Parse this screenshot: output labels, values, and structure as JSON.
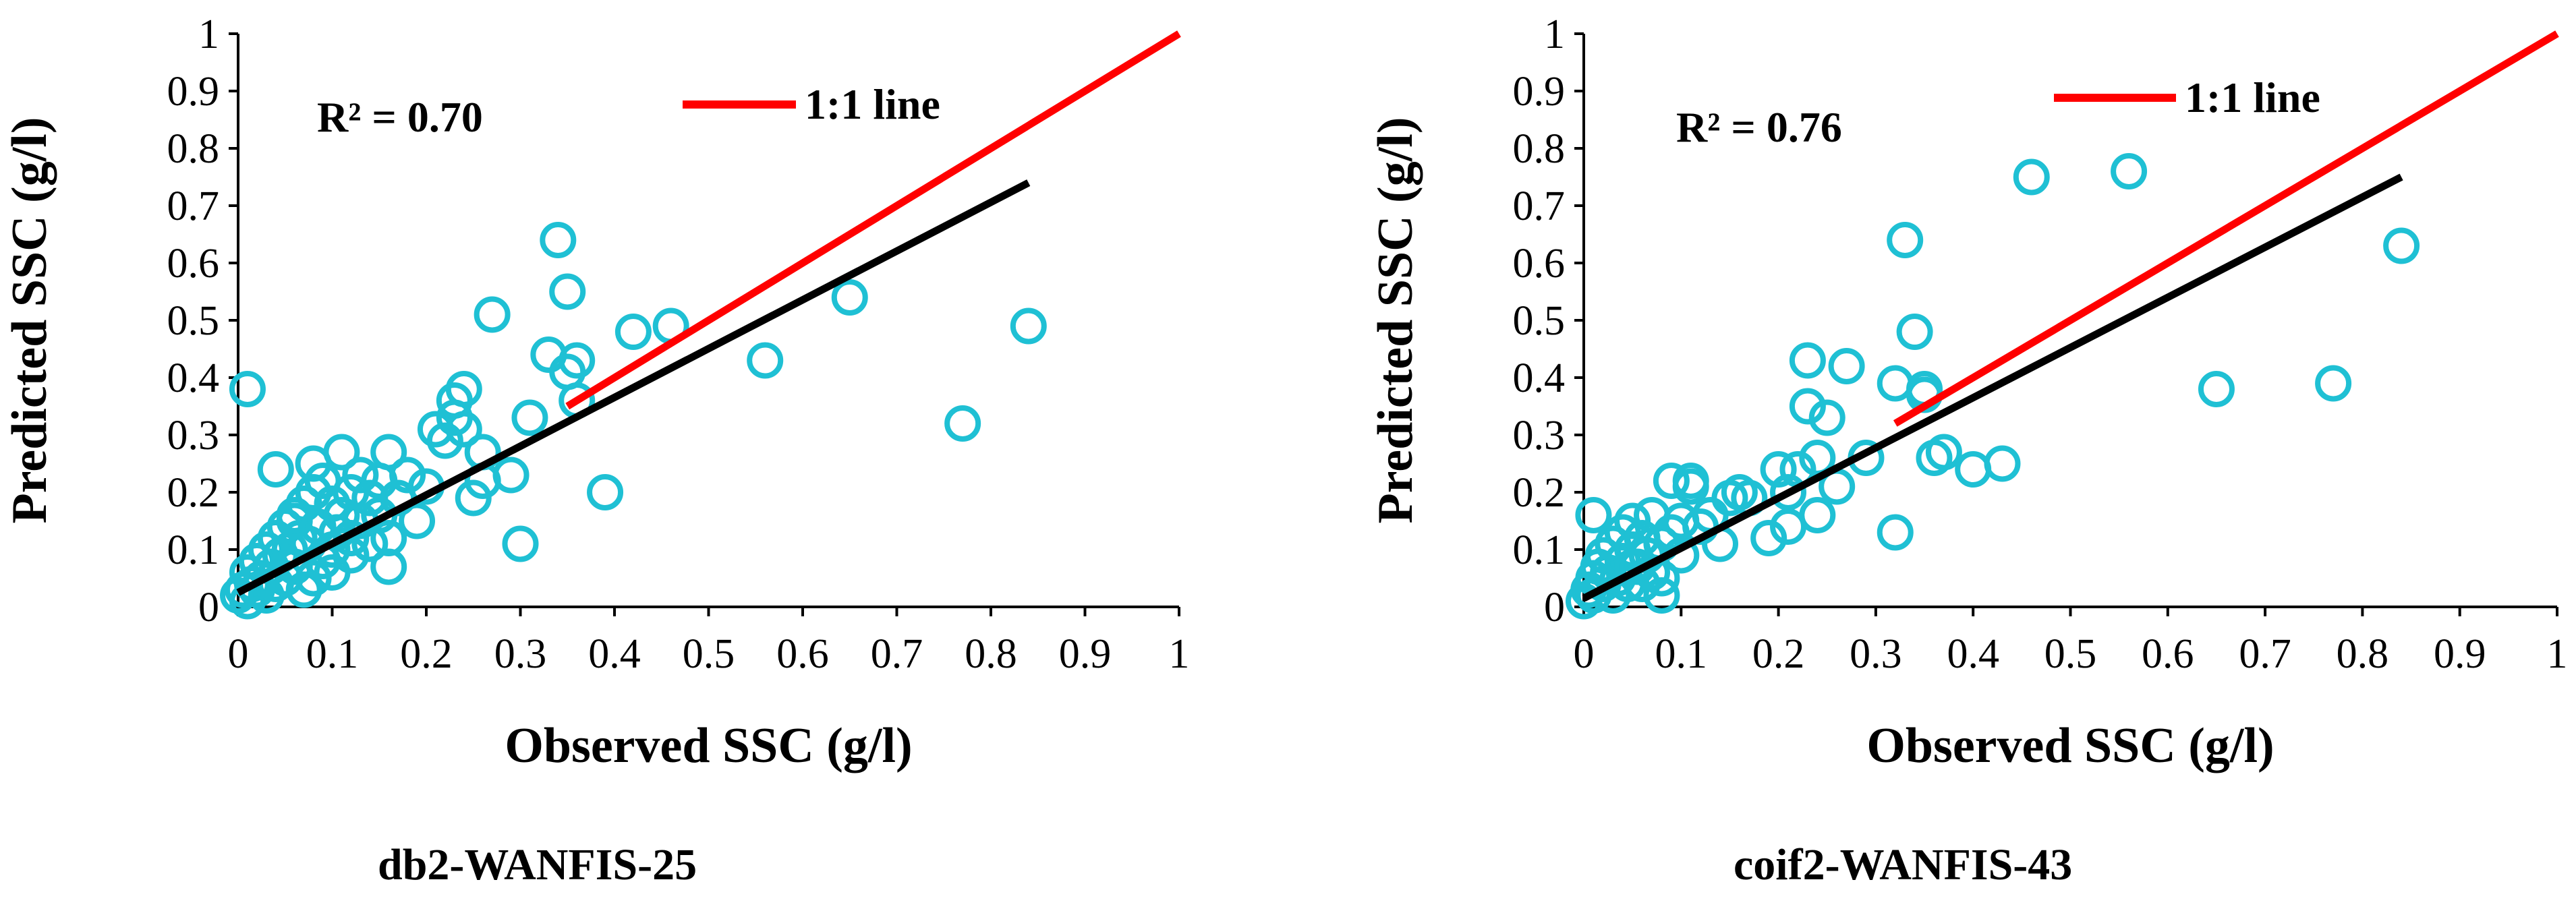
{
  "chart_data": [
    {
      "type": "scatter",
      "caption": "db2-WANFIS-25",
      "xlabel": "Observed SSC (g/l)",
      "ylabel": "Predicted SSC (g/l)",
      "xlim": [
        0,
        1
      ],
      "ylim": [
        0,
        1
      ],
      "xticks": [
        "0",
        "0.1",
        "0.2",
        "0.3",
        "0.4",
        "0.5",
        "0.6",
        "0.7",
        "0.8",
        "0.9",
        "1"
      ],
      "yticks": [
        "0",
        "0.1",
        "0.2",
        "0.3",
        "0.4",
        "0.5",
        "0.6",
        "0.7",
        "0.8",
        "0.9",
        "1"
      ],
      "r2_text": "R² = 0.70",
      "legend": [
        {
          "label": "1:1 line",
          "color": "#ff0000"
        }
      ],
      "colors": {
        "points": "#1fc0d4",
        "identity": "#ff0000",
        "fit": "#000000"
      },
      "fit_line": {
        "x": [
          0.0,
          0.84
        ],
        "y": [
          0.025,
          0.74
        ]
      },
      "identity_line": {
        "x": [
          0.35,
          1.0
        ],
        "y": [
          0.35,
          1.0
        ]
      },
      "points": {
        "x": [
          0.0,
          0.005,
          0.01,
          0.01,
          0.015,
          0.02,
          0.02,
          0.025,
          0.03,
          0.03,
          0.035,
          0.04,
          0.04,
          0.045,
          0.05,
          0.05,
          0.055,
          0.06,
          0.06,
          0.065,
          0.07,
          0.07,
          0.075,
          0.08,
          0.08,
          0.085,
          0.09,
          0.09,
          0.1,
          0.1,
          0.105,
          0.11,
          0.11,
          0.12,
          0.12,
          0.13,
          0.13,
          0.14,
          0.14,
          0.15,
          0.15,
          0.16,
          0.16,
          0.17,
          0.18,
          0.19,
          0.2,
          0.21,
          0.22,
          0.23,
          0.24,
          0.25,
          0.26,
          0.27,
          0.29,
          0.3,
          0.31,
          0.33,
          0.34,
          0.35,
          0.36,
          0.36,
          0.39,
          0.42,
          0.46,
          0.56,
          0.65,
          0.77,
          0.84,
          0.01,
          0.04,
          0.06,
          0.08,
          0.1,
          0.12,
          0.16,
          0.24,
          0.26,
          0.35,
          0.23
        ],
        "y": [
          0.02,
          0.03,
          0.01,
          0.06,
          0.04,
          0.03,
          0.08,
          0.05,
          0.02,
          0.1,
          0.07,
          0.04,
          0.12,
          0.09,
          0.05,
          0.14,
          0.1,
          0.07,
          0.16,
          0.12,
          0.03,
          0.18,
          0.11,
          0.05,
          0.2,
          0.14,
          0.08,
          0.22,
          0.1,
          0.18,
          0.13,
          0.16,
          0.27,
          0.12,
          0.2,
          0.15,
          0.23,
          0.11,
          0.19,
          0.16,
          0.22,
          0.07,
          0.27,
          0.19,
          0.23,
          0.15,
          0.21,
          0.31,
          0.29,
          0.36,
          0.38,
          0.19,
          0.27,
          0.51,
          0.23,
          0.11,
          0.33,
          0.44,
          0.64,
          0.55,
          0.43,
          0.36,
          0.2,
          0.48,
          0.49,
          0.43,
          0.54,
          0.32,
          0.49,
          0.38,
          0.24,
          0.15,
          0.25,
          0.06,
          0.09,
          0.12,
          0.31,
          0.22,
          0.41,
          0.33
        ]
      }
    },
    {
      "type": "scatter",
      "caption": "coif2-WANFIS-43",
      "xlabel": "Observed SSC (g/l)",
      "ylabel": "Predicted SSC (g/l)",
      "xlim": [
        0,
        1
      ],
      "ylim": [
        0,
        1
      ],
      "xticks": [
        "0",
        "0.1",
        "0.2",
        "0.3",
        "0.4",
        "0.5",
        "0.6",
        "0.7",
        "0.8",
        "0.9",
        "1"
      ],
      "yticks": [
        "0",
        "0.1",
        "0.2",
        "0.3",
        "0.4",
        "0.5",
        "0.6",
        "0.7",
        "0.8",
        "0.9",
        "1"
      ],
      "r2_text": "R² = 0.76",
      "legend": [
        {
          "label": "1:1 line",
          "color": "#ff0000"
        }
      ],
      "colors": {
        "points": "#1fc0d4",
        "identity": "#ff0000",
        "fit": "#000000"
      },
      "fit_line": {
        "x": [
          0.0,
          0.84
        ],
        "y": [
          0.015,
          0.75
        ]
      },
      "identity_line": {
        "x": [
          0.32,
          1.0
        ],
        "y": [
          0.32,
          1.0
        ]
      },
      "points": {
        "x": [
          0.0,
          0.005,
          0.01,
          0.01,
          0.015,
          0.02,
          0.02,
          0.025,
          0.03,
          0.03,
          0.035,
          0.04,
          0.04,
          0.045,
          0.05,
          0.05,
          0.055,
          0.06,
          0.06,
          0.065,
          0.07,
          0.07,
          0.08,
          0.08,
          0.09,
          0.09,
          0.1,
          0.1,
          0.11,
          0.12,
          0.13,
          0.14,
          0.15,
          0.16,
          0.17,
          0.19,
          0.2,
          0.21,
          0.22,
          0.23,
          0.23,
          0.24,
          0.25,
          0.26,
          0.27,
          0.29,
          0.32,
          0.32,
          0.33,
          0.34,
          0.35,
          0.35,
          0.36,
          0.37,
          0.4,
          0.43,
          0.46,
          0.56,
          0.65,
          0.77,
          0.84,
          0.01,
          0.05,
          0.08,
          0.11,
          0.24,
          0.21
        ],
        "y": [
          0.01,
          0.03,
          0.05,
          0.02,
          0.07,
          0.04,
          0.09,
          0.06,
          0.02,
          0.11,
          0.05,
          0.08,
          0.13,
          0.04,
          0.1,
          0.15,
          0.07,
          0.04,
          0.12,
          0.09,
          0.06,
          0.16,
          0.11,
          0.05,
          0.13,
          0.22,
          0.09,
          0.15,
          0.21,
          0.14,
          0.16,
          0.11,
          0.19,
          0.2,
          0.19,
          0.12,
          0.24,
          0.14,
          0.24,
          0.35,
          0.43,
          0.26,
          0.33,
          0.21,
          0.42,
          0.26,
          0.39,
          0.13,
          0.64,
          0.48,
          0.38,
          0.37,
          0.26,
          0.27,
          0.24,
          0.25,
          0.75,
          0.76,
          0.38,
          0.39,
          0.63,
          0.16,
          0.07,
          0.02,
          0.22,
          0.16,
          0.2
        ]
      }
    }
  ]
}
